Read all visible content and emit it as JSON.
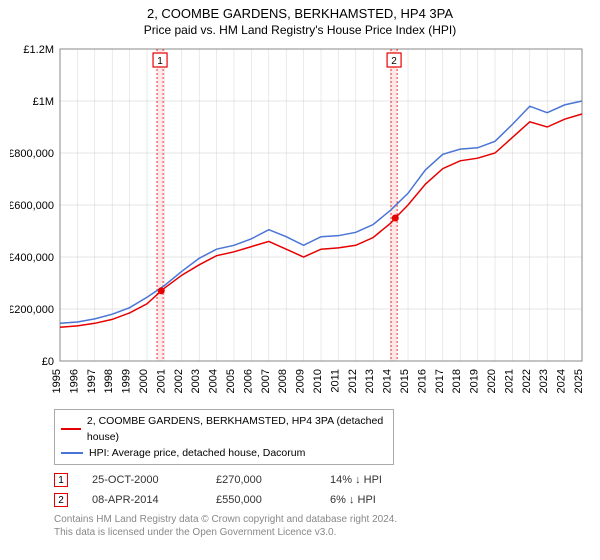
{
  "title_line1": "2, COOMBE GARDENS, BERKHAMSTED, HP4 3PA",
  "title_line2": "Price paid vs. HM Land Registry's House Price Index (HPI)",
  "chart": {
    "type": "line",
    "background_color": "#ffffff",
    "plot_border_color": "#888888",
    "grid_color": "#cccccc",
    "tick_fontsize": 11,
    "x_min": 1995,
    "x_max": 2025,
    "x_ticks": [
      1995,
      1996,
      1997,
      1998,
      1999,
      2000,
      2001,
      2002,
      2003,
      2004,
      2005,
      2006,
      2007,
      2008,
      2009,
      2010,
      2011,
      2012,
      2013,
      2014,
      2015,
      2016,
      2017,
      2018,
      2019,
      2020,
      2021,
      2022,
      2023,
      2024,
      2025
    ],
    "y_min": 0,
    "y_max": 1200000,
    "y_ticks": [
      0,
      200000,
      400000,
      600000,
      800000,
      1000000,
      1200000
    ],
    "y_tick_labels": [
      "£0",
      "£200,000",
      "£400,000",
      "£600,000",
      "£800,000",
      "£1M",
      "£1.2M"
    ],
    "title_fontsize": 13,
    "subtitle_fontsize": 12,
    "series": [
      {
        "id": "price_paid",
        "label": "2, COOMBE GARDENS, BERKHAMSTED, HP4 3PA (detached house)",
        "color": "#e60000",
        "line_width": 1.5,
        "points": [
          [
            1995,
            130000
          ],
          [
            1996,
            135000
          ],
          [
            1997,
            145000
          ],
          [
            1998,
            160000
          ],
          [
            1999,
            185000
          ],
          [
            2000,
            220000
          ],
          [
            2000.82,
            270000
          ],
          [
            2001,
            280000
          ],
          [
            2002,
            330000
          ],
          [
            2003,
            370000
          ],
          [
            2004,
            405000
          ],
          [
            2005,
            420000
          ],
          [
            2006,
            440000
          ],
          [
            2007,
            460000
          ],
          [
            2008,
            430000
          ],
          [
            2009,
            400000
          ],
          [
            2010,
            430000
          ],
          [
            2011,
            435000
          ],
          [
            2012,
            445000
          ],
          [
            2013,
            475000
          ],
          [
            2014,
            530000
          ],
          [
            2014.27,
            550000
          ],
          [
            2015,
            600000
          ],
          [
            2016,
            680000
          ],
          [
            2017,
            740000
          ],
          [
            2018,
            770000
          ],
          [
            2019,
            780000
          ],
          [
            2020,
            800000
          ],
          [
            2021,
            860000
          ],
          [
            2022,
            920000
          ],
          [
            2023,
            900000
          ],
          [
            2024,
            930000
          ],
          [
            2025,
            950000
          ]
        ]
      },
      {
        "id": "hpi",
        "label": "HPI: Average price, detached house, Dacorum",
        "color": "#4a74d6",
        "line_width": 1.5,
        "points": [
          [
            1995,
            145000
          ],
          [
            1996,
            150000
          ],
          [
            1997,
            162000
          ],
          [
            1998,
            180000
          ],
          [
            1999,
            205000
          ],
          [
            2000,
            245000
          ],
          [
            2001,
            290000
          ],
          [
            2002,
            345000
          ],
          [
            2003,
            395000
          ],
          [
            2004,
            430000
          ],
          [
            2005,
            445000
          ],
          [
            2006,
            470000
          ],
          [
            2007,
            505000
          ],
          [
            2008,
            478000
          ],
          [
            2009,
            445000
          ],
          [
            2010,
            478000
          ],
          [
            2011,
            482000
          ],
          [
            2012,
            495000
          ],
          [
            2013,
            525000
          ],
          [
            2014,
            580000
          ],
          [
            2015,
            645000
          ],
          [
            2016,
            735000
          ],
          [
            2017,
            795000
          ],
          [
            2018,
            815000
          ],
          [
            2019,
            820000
          ],
          [
            2020,
            845000
          ],
          [
            2021,
            910000
          ],
          [
            2022,
            980000
          ],
          [
            2023,
            955000
          ],
          [
            2024,
            985000
          ],
          [
            2025,
            1000000
          ]
        ]
      }
    ],
    "event_bands": [
      {
        "label": "1",
        "x": 2000.75,
        "color": "#e60000",
        "band_color": "#ffe8e8",
        "band_width_years": 0.35
      },
      {
        "label": "2",
        "x": 2014.2,
        "color": "#e60000",
        "band_color": "#ffe8e8",
        "band_width_years": 0.35
      }
    ],
    "event_points": [
      {
        "x": 2000.82,
        "y": 270000,
        "color": "#e60000"
      },
      {
        "x": 2014.27,
        "y": 550000,
        "color": "#e60000"
      }
    ]
  },
  "legend": {
    "border_color": "#aaaaaa",
    "fontsize": 10.5
  },
  "events_table": {
    "fontsize": 11,
    "marker_border": "#e60000",
    "rows": [
      {
        "num": "1",
        "date": "25-OCT-2000",
        "price": "£270,000",
        "delta": "14% ↓ HPI"
      },
      {
        "num": "2",
        "date": "08-APR-2014",
        "price": "£550,000",
        "delta": "6% ↓ HPI"
      }
    ]
  },
  "footer": {
    "line1": "Contains HM Land Registry data © Crown copyright and database right 2024.",
    "line2": "This data is licensed under the Open Government Licence v3.0.",
    "color": "#888888",
    "fontsize": 10
  }
}
